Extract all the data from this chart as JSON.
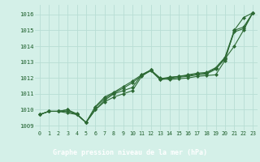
{
  "title": "Graphe pression niveau de la mer (hPa)",
  "bg_color": "#d4f0e8",
  "grid_color": "#b8ddd4",
  "line_color": "#2d6a35",
  "text_color": "#1a5c28",
  "xlim": [
    -0.5,
    23.5
  ],
  "ylim": [
    1008.7,
    1016.6
  ],
  "yticks": [
    1009,
    1010,
    1011,
    1012,
    1013,
    1014,
    1015,
    1016
  ],
  "xticks": [
    0,
    1,
    2,
    3,
    4,
    5,
    6,
    7,
    8,
    9,
    10,
    11,
    12,
    13,
    14,
    15,
    16,
    17,
    18,
    19,
    20,
    21,
    22,
    23
  ],
  "series": [
    [
      1009.7,
      1009.9,
      1009.9,
      1009.8,
      1009.7,
      1009.2,
      1010.0,
      1010.5,
      1010.8,
      1011.0,
      1011.2,
      1012.1,
      1012.5,
      1012.0,
      1011.9,
      1011.95,
      1012.0,
      1012.1,
      1012.15,
      1012.2,
      1013.1,
      1015.0,
      1015.8,
      1016.1
    ],
    [
      1009.7,
      1009.9,
      1009.9,
      1009.9,
      1009.7,
      1009.2,
      1010.0,
      1010.6,
      1011.0,
      1011.2,
      1011.4,
      1012.2,
      1012.5,
      1011.9,
      1011.95,
      1012.05,
      1012.1,
      1012.2,
      1012.25,
      1012.55,
      1013.2,
      1014.0,
      1015.0,
      1016.1
    ],
    [
      1009.7,
      1009.9,
      1009.9,
      1010.0,
      1009.7,
      1009.2,
      1010.15,
      1010.7,
      1011.05,
      1011.35,
      1011.7,
      1012.15,
      1012.45,
      1011.9,
      1012.0,
      1012.1,
      1012.15,
      1012.25,
      1012.3,
      1012.6,
      1013.25,
      1014.9,
      1015.1,
      1016.1
    ],
    [
      1009.7,
      1009.9,
      1009.9,
      1010.0,
      1009.75,
      1009.2,
      1010.2,
      1010.8,
      1011.1,
      1011.45,
      1011.8,
      1012.2,
      1012.5,
      1011.95,
      1012.05,
      1012.1,
      1012.2,
      1012.3,
      1012.35,
      1012.65,
      1013.3,
      1015.0,
      1015.2,
      1016.1
    ]
  ],
  "marker": "D",
  "markersize": 2.0,
  "linewidth": 0.8,
  "bottom_bar_color": "#2d6a35",
  "bottom_bar_height": 0.13
}
